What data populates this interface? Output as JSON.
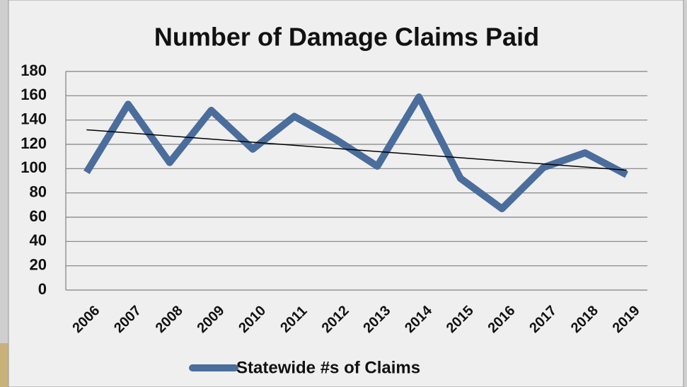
{
  "chart_data": {
    "type": "line",
    "title": "Number of Damage Claims Paid",
    "categories": [
      "2006",
      "2007",
      "2008",
      "2009",
      "2010",
      "2011",
      "2012",
      "2013",
      "2014",
      "2015",
      "2016",
      "2017",
      "2018",
      "2019"
    ],
    "series": [
      {
        "name": "Statewide #s of Claims",
        "color": "#4a6d9c",
        "values": [
          97,
          153,
          105,
          148,
          116,
          143,
          124,
          102,
          159,
          92,
          67,
          101,
          113,
          95
        ]
      }
    ],
    "trendline": true,
    "trendline_color": "#000000",
    "ylim": [
      0,
      180
    ],
    "yticks": [
      0,
      20,
      40,
      60,
      80,
      100,
      120,
      140,
      160,
      180
    ],
    "grid": true,
    "legend": "bottom"
  }
}
